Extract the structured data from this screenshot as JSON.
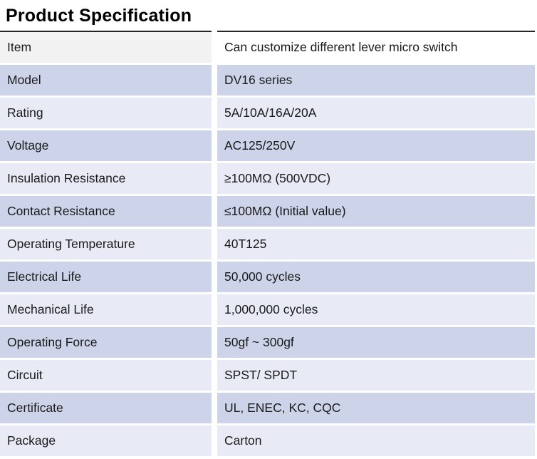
{
  "title": "Product Specification",
  "table": {
    "rows": [
      {
        "item": "Item",
        "value": "Can customize different lever micro switch"
      },
      {
        "item": "Model",
        "value": "DV16 series"
      },
      {
        "item": "Rating",
        "value": "5A/10A/16A/20A"
      },
      {
        "item": "Voltage",
        "value": "AC125/250V"
      },
      {
        "item": "Insulation Resistance",
        "value": "≥100MΩ (500VDC)"
      },
      {
        "item": "Contact Resistance",
        "value": "≤100MΩ (Initial value)"
      },
      {
        "item": "Operating Temperature",
        "value": "40T125"
      },
      {
        "item": "Electrical Life",
        "value": "50,000 cycles"
      },
      {
        "item": "Mechanical Life",
        "value": "1,000,000 cycles"
      },
      {
        "item": "Operating Force",
        "value": "50gf ~ 300gf"
      },
      {
        "item": "Circuit",
        "value": "SPST/ SPDT"
      },
      {
        "item": "Certificate",
        "value": "UL, ENEC, KC, CQC"
      },
      {
        "item": "Package",
        "value": "Carton"
      }
    ]
  },
  "colors": {
    "header_cell_bg": "#f2f2f2",
    "row_alt_light": "#e8ebf6",
    "row_alt_medium": "#cdd3e8",
    "top_border": "#262626",
    "text": "#1a1a1a"
  }
}
